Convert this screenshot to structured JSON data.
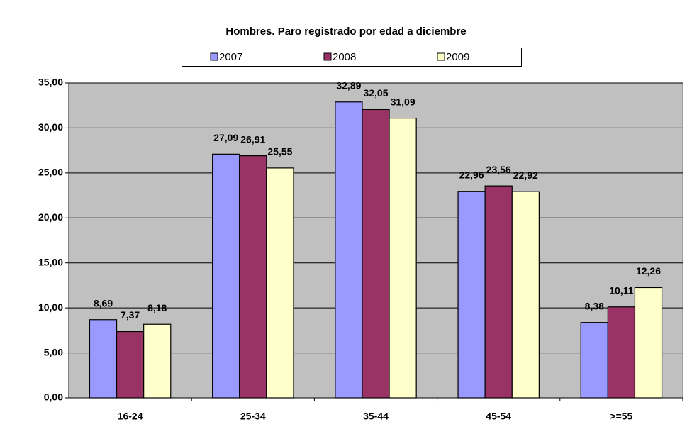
{
  "chart_data": {
    "type": "bar",
    "title": "Hombres. Paro registrado por edad a diciembre",
    "categories": [
      "16-24",
      "25-34",
      "35-44",
      "45-54",
      ">=55"
    ],
    "series": [
      {
        "name": "2007",
        "color": "#9999ff",
        "values": [
          8.69,
          27.09,
          32.89,
          22.96,
          8.38
        ],
        "value_labels": [
          "8,69",
          "27,09",
          "32,89",
          "22,96",
          "8,38"
        ]
      },
      {
        "name": "2008",
        "color": "#993366",
        "values": [
          7.37,
          26.91,
          32.05,
          23.56,
          10.11
        ],
        "value_labels": [
          "7,37",
          "26,91",
          "32,05",
          "23,56",
          "10,11"
        ]
      },
      {
        "name": "2009",
        "color": "#ffffcc",
        "values": [
          8.18,
          25.55,
          31.09,
          22.92,
          12.26
        ],
        "value_labels": [
          "8,18",
          "25,55",
          "31,09",
          "22,92",
          "12,26"
        ]
      }
    ],
    "ylim": [
      0,
      35
    ],
    "yticks": [
      {
        "value": 0,
        "label": "0,00"
      },
      {
        "value": 5,
        "label": "5,00"
      },
      {
        "value": 10,
        "label": "10,00"
      },
      {
        "value": 15,
        "label": "15,00"
      },
      {
        "value": 20,
        "label": "20,00"
      },
      {
        "value": 25,
        "label": "25,00"
      },
      {
        "value": 30,
        "label": "30,00"
      },
      {
        "value": 35,
        "label": "35,00"
      }
    ],
    "grid": true,
    "plot_background": "#c0c0c0",
    "legend": "top"
  }
}
